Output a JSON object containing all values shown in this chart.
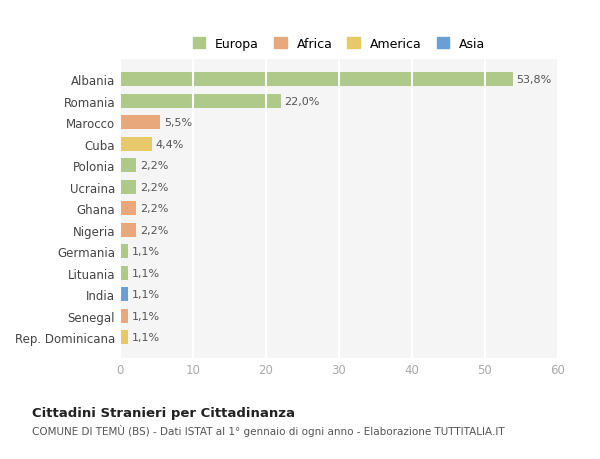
{
  "categories": [
    "Albania",
    "Romania",
    "Marocco",
    "Cuba",
    "Polonia",
    "Ucraina",
    "Ghana",
    "Nigeria",
    "Germania",
    "Lituania",
    "India",
    "Senegal",
    "Rep. Dominicana"
  ],
  "values": [
    53.8,
    22.0,
    5.5,
    4.4,
    2.2,
    2.2,
    2.2,
    2.2,
    1.1,
    1.1,
    1.1,
    1.1,
    1.1
  ],
  "labels": [
    "53,8%",
    "22,0%",
    "5,5%",
    "4,4%",
    "2,2%",
    "2,2%",
    "2,2%",
    "2,2%",
    "1,1%",
    "1,1%",
    "1,1%",
    "1,1%",
    "1,1%"
  ],
  "colors": [
    "#aec98a",
    "#aec98a",
    "#e9a87c",
    "#e8c96a",
    "#aec98a",
    "#aec98a",
    "#e9a87c",
    "#e9a87c",
    "#aec98a",
    "#aec98a",
    "#6b9fd4",
    "#e9a87c",
    "#e8c96a"
  ],
  "legend_labels": [
    "Europa",
    "Africa",
    "America",
    "Asia"
  ],
  "legend_colors": [
    "#aec98a",
    "#e9a87c",
    "#e8c96a",
    "#6b9fd4"
  ],
  "xlim": [
    0,
    60
  ],
  "xticks": [
    0,
    10,
    20,
    30,
    40,
    50,
    60
  ],
  "title_main": "Cittadini Stranieri per Cittadinanza",
  "title_sub": "COMUNE DI TEMÙ (BS) - Dati ISTAT al 1° gennaio di ogni anno - Elaborazione TUTTITALIA.IT",
  "fig_bg_color": "#ffffff",
  "plot_bg_color": "#f5f5f5",
  "grid_color": "#ffffff",
  "bar_height": 0.65
}
